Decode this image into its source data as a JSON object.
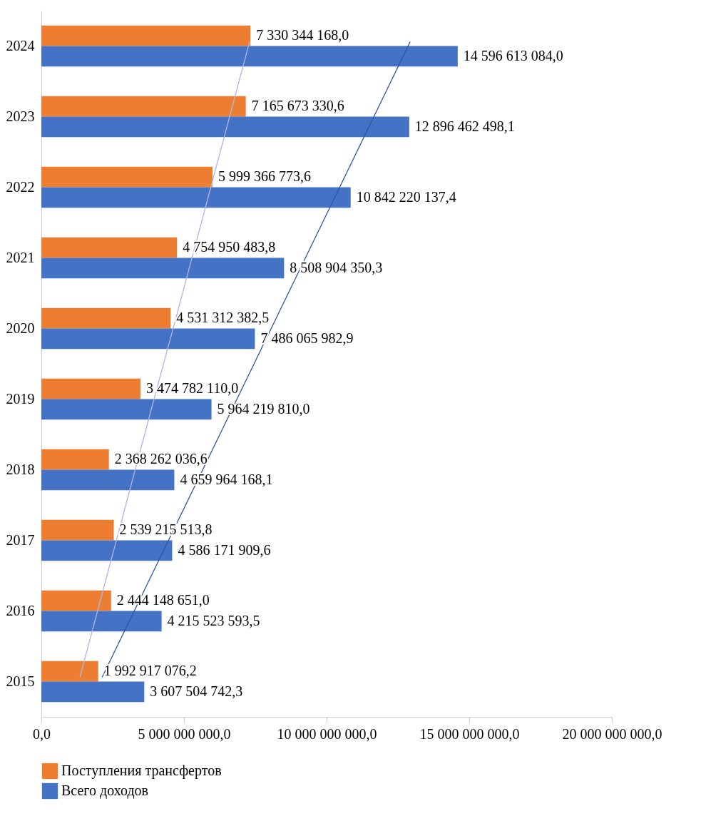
{
  "chart_data": {
    "type": "bar",
    "orientation": "horizontal",
    "categories": [
      "2024",
      "2023",
      "2022",
      "2021",
      "2020",
      "2019",
      "2018",
      "2017",
      "2016",
      "2015"
    ],
    "series": [
      {
        "name": "Поступления трансфертов",
        "color": "#ed7d31",
        "values": [
          7330344168.0,
          7165673330.6,
          5999366773.6,
          4754950483.8,
          4531312382.5,
          3474782110.0,
          2368262036.6,
          2539215513.8,
          2444148651.0,
          1992917076.2
        ],
        "value_labels": [
          "7 330 344 168,0",
          "7 165 673 330,6",
          "5 999 366 773,6",
          "4 754 950 483,8",
          "4 531 312 382,5",
          "3 474 782 110,0",
          "2 368 262 036,6",
          "2 539 215 513,8",
          "2 444 148 651,0",
          "1 992 917 076,2"
        ]
      },
      {
        "name": "Всего доходов",
        "color": "#4472c4",
        "values": [
          14596613084.0,
          12896462498.1,
          10842220137.4,
          8508904350.3,
          7486065982.9,
          5964219810.0,
          4659964168.1,
          4586171909.6,
          4215523593.5,
          3607504742.3
        ],
        "value_labels": [
          "14 596 613 084,0",
          "12 896 462 498,1",
          "10 842 220 137,4",
          "8 508 904 350,3",
          "7 486 065 982,9",
          "5 964 219 810,0",
          "4 659 964 168,1",
          "4 586 171 909,6",
          "4 215 523 593,5",
          "3 607 504 742,3"
        ]
      },
      {
        "type": "line",
        "color": "#aab7e8",
        "values": [
          7300000000,
          6640000000,
          5980000000,
          5320000000,
          4660000000,
          3990000000,
          3330000000,
          2670000000,
          2010000000,
          1350000000
        ]
      },
      {
        "type": "line",
        "color": "#2f55a4",
        "values": [
          12930000000,
          11730000000,
          10530000000,
          9330000000,
          8130000000,
          6930000000,
          5730000000,
          4530000000,
          3330000000,
          2130000000
        ]
      }
    ],
    "xlim": [
      0,
      20000000000
    ],
    "xticks": [
      {
        "value": 0,
        "label": "0,0"
      },
      {
        "value": 5000000000,
        "label": "5 000 000 000,0"
      },
      {
        "value": 10000000000,
        "label": "10 000 000 000,0"
      },
      {
        "value": 15000000000,
        "label": "15 000 000 000,0"
      },
      {
        "value": 20000000000,
        "label": "20 000 000 000,0"
      }
    ],
    "grid": false,
    "legend": "bottom"
  }
}
